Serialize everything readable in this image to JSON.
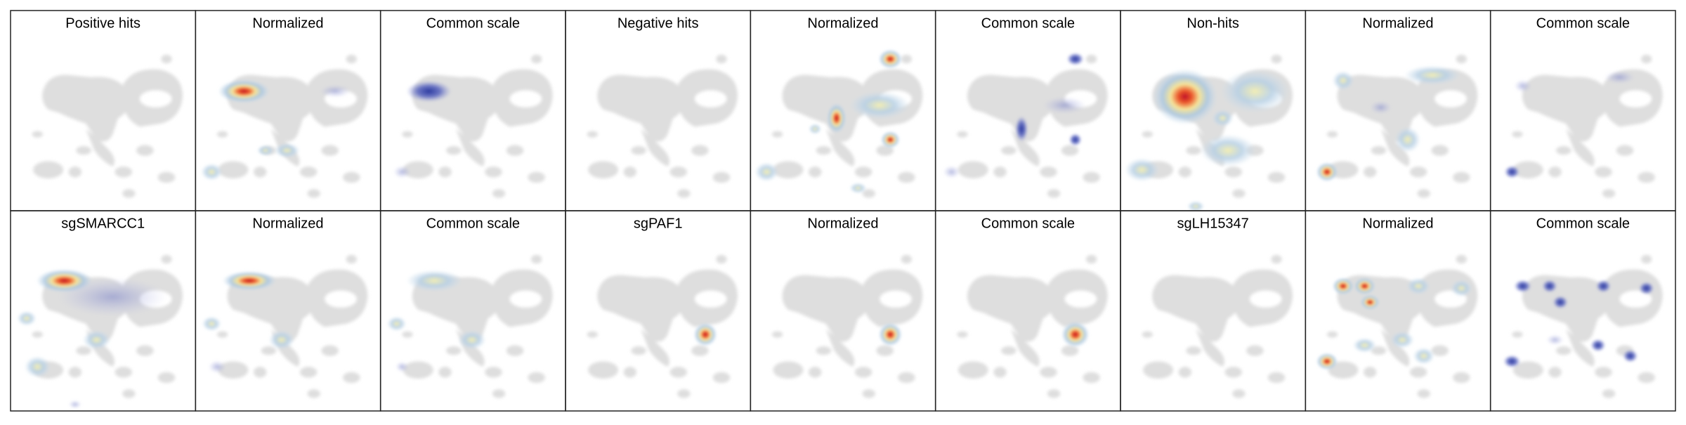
{
  "panels": [
    [
      "Positive hits",
      "Normalized",
      "Common scale",
      "Negative hits",
      "Normalized",
      "Common scale",
      "Non-hits",
      "Normalized",
      "Common scale"
    ],
    [
      "sgSMARCC1",
      "Normalized",
      "Common scale",
      "sgPAF1",
      "Normalized",
      "Common scale",
      "sgLH15347",
      "Normalized",
      "Common scale"
    ]
  ]
}
